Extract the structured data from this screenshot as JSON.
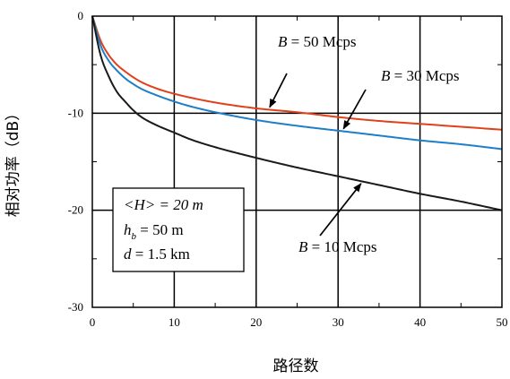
{
  "chart_data": {
    "type": "line",
    "title": "",
    "xlabel": "路径数",
    "ylabel": "相对功率（dB）",
    "xlim": [
      0,
      50
    ],
    "ylim": [
      -30,
      0
    ],
    "xticks": [
      0,
      10,
      20,
      30,
      40,
      50
    ],
    "yticks": [
      0,
      -10,
      -20,
      -30
    ],
    "grid": true,
    "series": [
      {
        "name": "B = 50 Mcps",
        "color": "#e0401a",
        "x": [
          0,
          1,
          2,
          3,
          4,
          5,
          6,
          8,
          10,
          12,
          15,
          20,
          25,
          30,
          35,
          40,
          45,
          50
        ],
        "y": [
          0,
          -2.5,
          -4.0,
          -5.0,
          -5.7,
          -6.3,
          -6.8,
          -7.5,
          -8.0,
          -8.4,
          -8.9,
          -9.5,
          -9.9,
          -10.4,
          -10.8,
          -11.1,
          -11.4,
          -11.7
        ]
      },
      {
        "name": "B = 30 Mcps",
        "color": "#1e7ec8",
        "x": [
          0,
          1,
          2,
          3,
          4,
          5,
          6,
          8,
          10,
          12,
          15,
          20,
          25,
          30,
          35,
          40,
          45,
          50
        ],
        "y": [
          0,
          -3.0,
          -4.6,
          -5.6,
          -6.4,
          -7.0,
          -7.5,
          -8.2,
          -8.8,
          -9.3,
          -9.9,
          -10.7,
          -11.3,
          -11.8,
          -12.3,
          -12.8,
          -13.2,
          -13.7
        ]
      },
      {
        "name": "B = 10 Mcps",
        "color": "#1a1a1a",
        "x": [
          0,
          1,
          2,
          3,
          4,
          5,
          6,
          8,
          10,
          12,
          15,
          20,
          25,
          30,
          35,
          40,
          45,
          50
        ],
        "y": [
          0,
          -4.0,
          -6.2,
          -7.8,
          -8.8,
          -9.7,
          -10.4,
          -11.3,
          -12.0,
          -12.7,
          -13.5,
          -14.6,
          -15.6,
          -16.5,
          -17.4,
          -18.3,
          -19.1,
          -20.0
        ]
      }
    ],
    "annotations": [
      {
        "text_pre": "B",
        "text_post": " = 50 Mcps",
        "series_index": 0,
        "point_x": 21.5
      },
      {
        "text_pre": "B",
        "text_post": " = 30 Mcps",
        "series_index": 1,
        "point_x": 30.5
      },
      {
        "text_pre": "B",
        "text_post": " = 10 Mcps",
        "series_index": 2,
        "point_x": 33
      }
    ],
    "params": {
      "line1_pre": "<H> = 20 m",
      "line2_var": "h",
      "line2_sub": "b",
      "line2_post": " = 50 m",
      "line3_var": "d",
      "line3_post": " = 1.5 km"
    }
  }
}
